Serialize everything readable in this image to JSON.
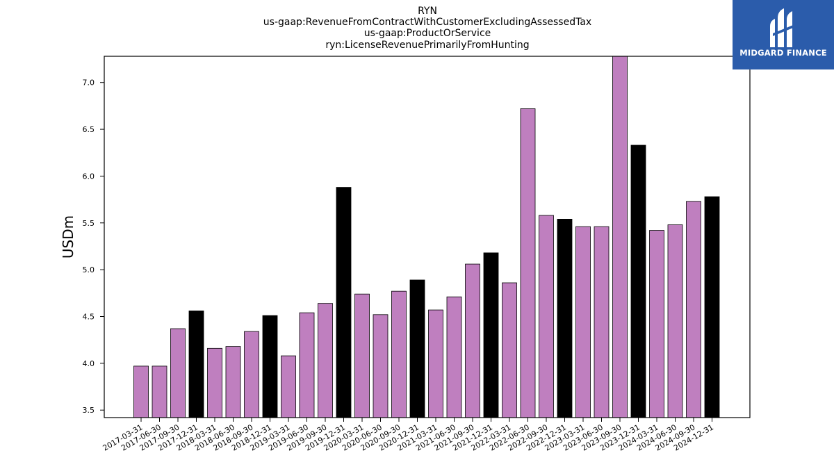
{
  "colors": {
    "bar_default": "#bf7fbf",
    "bar_highlight": "#000000",
    "logo_bg": "#2b5cab"
  },
  "logo": {
    "text": "MIDGARD FINANCE",
    "icon": "midgard-logo-icon"
  },
  "chart_data": {
    "type": "bar",
    "title_lines": [
      "RYN",
      "us-gaap:RevenueFromContractWithCustomerExcludingAssessedTax",
      "us-gaap:ProductOrService",
      "ryn:LicenseRevenuePrimarilyFromHunting"
    ],
    "xlabel": "",
    "ylabel": "USDm",
    "ylim": [
      3.42,
      7.28
    ],
    "yticks": [
      3.5,
      4.0,
      4.5,
      5.0,
      5.5,
      6.0,
      6.5,
      7.0
    ],
    "ytick_labels": [
      "3.5",
      "4.0",
      "4.5",
      "5.0",
      "5.5",
      "6.0",
      "6.5",
      "7.0"
    ],
    "categories": [
      "2017-03-31",
      "2017-06-30",
      "2017-09-30",
      "2017-12-31",
      "2018-03-31",
      "2018-06-30",
      "2018-09-30",
      "2018-12-31",
      "2019-03-31",
      "2019-06-30",
      "2019-09-30",
      "2019-12-31",
      "2020-03-31",
      "2020-06-30",
      "2020-09-30",
      "2020-12-31",
      "2021-03-31",
      "2021-06-30",
      "2021-09-30",
      "2021-12-31",
      "2022-03-31",
      "2022-06-30",
      "2022-09-30",
      "2022-12-31",
      "2023-03-31",
      "2023-06-30",
      "2023-09-30",
      "2023-12-31",
      "2024-03-31",
      "2024-06-30",
      "2024-09-30",
      "2024-12-31"
    ],
    "values": [
      3.97,
      3.97,
      4.37,
      4.56,
      4.16,
      4.18,
      4.34,
      4.51,
      4.08,
      4.54,
      4.64,
      5.88,
      4.74,
      4.52,
      4.77,
      4.89,
      4.57,
      4.71,
      5.06,
      5.18,
      4.86,
      6.72,
      5.58,
      5.54,
      5.46,
      5.46,
      7.3,
      6.33,
      5.42,
      5.48,
      5.73,
      5.78
    ],
    "highlight_categories": [
      "2017-12-31",
      "2018-12-31",
      "2019-12-31",
      "2020-12-31",
      "2021-12-31",
      "2022-12-31",
      "2023-12-31",
      "2024-12-31"
    ],
    "grid": false,
    "legend": "none"
  }
}
